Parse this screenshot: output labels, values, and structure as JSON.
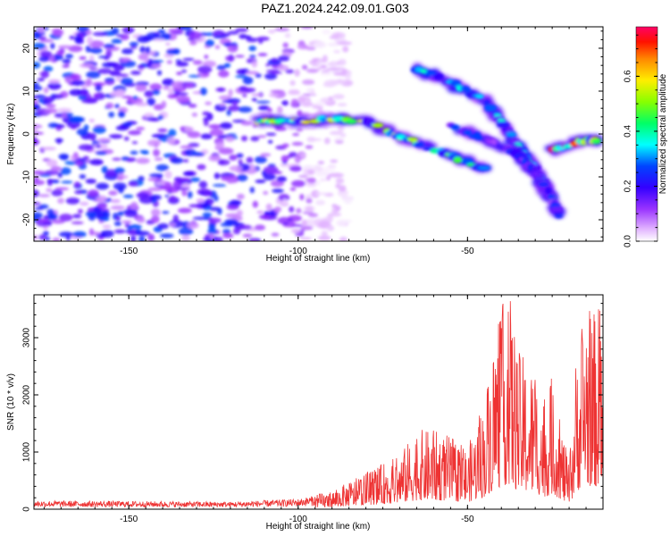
{
  "title": "PAZ1.2024.242.09.01.G03",
  "chart_data": [
    {
      "type": "heatmap",
      "xlabel": "Height of straight line (km)",
      "ylabel": "Frequency (Hz)",
      "xlim": [
        -178,
        -10
      ],
      "ylim": [
        -25,
        25
      ],
      "xticks": [
        -150,
        -100,
        -50
      ],
      "yticks": [
        -20,
        -10,
        0,
        10,
        20
      ],
      "colorbar": {
        "label": "Normalized spectral amplitude",
        "range": [
          0,
          0.78
        ],
        "ticks": [
          0.0,
          0.2,
          0.4,
          0.6
        ],
        "tick_labels": [
          "0.0",
          "0.2",
          "0.4",
          "0.6"
        ],
        "colors": [
          "#ffffff",
          "#c080ff",
          "#6600ff",
          "#0000ff",
          "#00ffff",
          "#00ff00",
          "#ffff00",
          "#ff8800",
          "#ff0000",
          "#ff0066"
        ]
      },
      "features": [
        {
          "x": [
            -112,
            -100,
            -90,
            -80,
            -72,
            -65,
            -55,
            -45
          ],
          "y": [
            3,
            3,
            3.5,
            3,
            0,
            -2,
            -5,
            -8
          ],
          "level": 0.5
        },
        {
          "x": [
            -65,
            -55,
            -45,
            -40,
            -35,
            -30,
            -25
          ],
          "y": [
            15,
            12,
            8,
            3,
            -3,
            -8,
            -15
          ],
          "level": 0.35
        },
        {
          "x": [
            -55,
            -45,
            -35,
            -27,
            -23
          ],
          "y": [
            2,
            -1,
            -5,
            -12,
            -19
          ],
          "level": 0.25
        },
        {
          "x": [
            -25,
            -20,
            -15,
            -12
          ],
          "y": [
            -4,
            -2.5,
            -1.5,
            -1.5
          ],
          "level": 0.65
        }
      ],
      "noise_region_x": [
        -178,
        -95
      ],
      "noise_level": 0.15
    },
    {
      "type": "line",
      "xlabel": "Height of straight line (km)",
      "ylabel": "SNR (10 * v/v)",
      "xlim": [
        -178,
        -10
      ],
      "ylim": [
        0,
        3750
      ],
      "xticks": [
        -150,
        -100,
        -50
      ],
      "yticks": [
        0,
        1000,
        2000,
        3000
      ],
      "color": "#ee3333",
      "envelope": [
        {
          "x": -178,
          "y": 150
        },
        {
          "x": -120,
          "y": 130
        },
        {
          "x": -100,
          "y": 180
        },
        {
          "x": -90,
          "y": 300
        },
        {
          "x": -80,
          "y": 600
        },
        {
          "x": -70,
          "y": 900
        },
        {
          "x": -65,
          "y": 1300
        },
        {
          "x": -60,
          "y": 1300
        },
        {
          "x": -55,
          "y": 1200
        },
        {
          "x": -50,
          "y": 1000
        },
        {
          "x": -45,
          "y": 1800
        },
        {
          "x": -42,
          "y": 2900
        },
        {
          "x": -38,
          "y": 3700
        },
        {
          "x": -35,
          "y": 2600
        },
        {
          "x": -30,
          "y": 2300
        },
        {
          "x": -27,
          "y": 1800
        },
        {
          "x": -25,
          "y": 2200
        },
        {
          "x": -20,
          "y": 700
        },
        {
          "x": -18,
          "y": 2500
        },
        {
          "x": -15,
          "y": 3600
        },
        {
          "x": -13,
          "y": 3200
        },
        {
          "x": -11,
          "y": 3400
        },
        {
          "x": -10,
          "y": 2200
        }
      ]
    }
  ]
}
